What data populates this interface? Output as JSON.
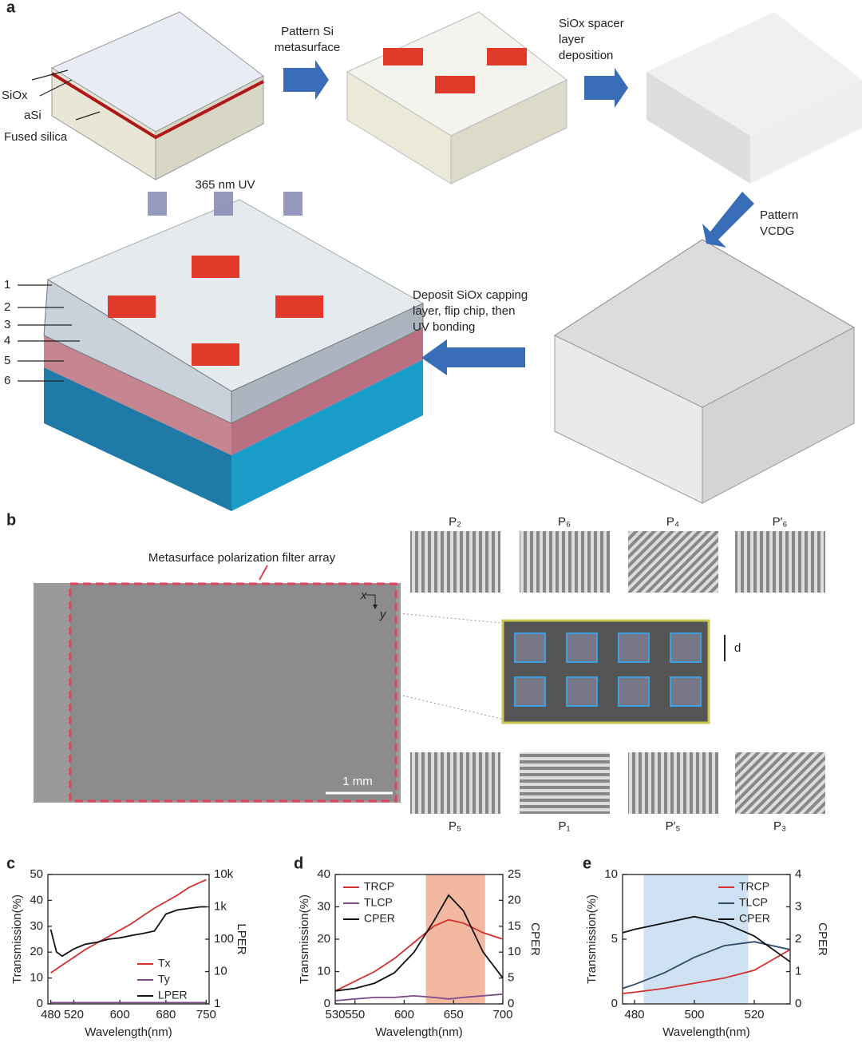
{
  "panel_labels": [
    "a",
    "b",
    "c",
    "d",
    "e"
  ],
  "panel_a": {
    "layers": [
      "SiOx",
      "aSi",
      "Fused silica"
    ],
    "steps": [
      [
        "Pattern Si",
        "metasurface"
      ],
      [
        "SiOx spacer",
        "layer",
        "deposition"
      ],
      [
        "Pattern",
        "VCDG"
      ],
      [
        "Deposit SiOx capping",
        "layer, flip chip, then",
        "UV bonding"
      ]
    ],
    "uv": "365 nm UV",
    "layer_numbers": [
      "1",
      "2",
      "3",
      "4",
      "5",
      "6"
    ]
  },
  "panel_b": {
    "caption": "Metasurface polarization filter array",
    "scale": "1 mm",
    "axes": [
      "x",
      "y"
    ],
    "d": "d",
    "patterns_top": [
      "P₂",
      "P₆",
      "P₄",
      "P′₆"
    ],
    "patterns_bottom": [
      "P₅",
      "P₁",
      "P′₅",
      "P₃"
    ]
  },
  "chart_data": [
    {
      "type": "line",
      "xlabel": "Wavelength(nm)",
      "ylabel": "Transmission(%)",
      "y2label": "LPER",
      "legend": "lower right",
      "x": [
        480,
        490,
        500,
        520,
        540,
        560,
        580,
        600,
        620,
        640,
        660,
        680,
        700,
        720,
        740,
        750
      ],
      "xlim": [
        475,
        755
      ],
      "xticks": [
        480,
        520,
        600,
        680,
        750
      ],
      "ylim": [
        0,
        50
      ],
      "yticks": [
        0,
        10,
        20,
        30,
        40,
        50
      ],
      "y2lim": [
        1,
        10000
      ],
      "y2log": true,
      "y2ticks": [
        1,
        10,
        100,
        {
          "value": 1000,
          "label": "1k"
        },
        {
          "value": 10000,
          "label": "10k"
        }
      ],
      "series": [
        {
          "name": "Tx",
          "color": "#d62f2f",
          "values": [
            12,
            13.5,
            15,
            18,
            21,
            23.5,
            26,
            28.5,
            31,
            34,
            37,
            39.5,
            42,
            45,
            47,
            48
          ]
        },
        {
          "name": "Ty",
          "color": "#7a4a8a",
          "values": [
            0.5,
            0.5,
            0.5,
            0.5,
            0.5,
            0.5,
            0.5,
            0.5,
            0.5,
            0.5,
            0.5,
            0.5,
            0.5,
            0.5,
            0.5,
            0.5
          ]
        },
        {
          "name": "LPER",
          "color": "#111111",
          "axis": "y2",
          "values": [
            200,
            40,
            30,
            50,
            70,
            80,
            100,
            110,
            130,
            150,
            180,
            600,
            800,
            900,
            1000,
            1000
          ]
        }
      ]
    },
    {
      "type": "line",
      "xlabel": "Wavelength(nm)",
      "ylabel": "Transmission(%)",
      "y2label": "CPER",
      "legend": "upper left",
      "x": [
        530,
        550,
        570,
        590,
        610,
        630,
        645,
        660,
        680,
        700
      ],
      "xlim": [
        530,
        700
      ],
      "xticks": [
        530,
        550,
        600,
        650,
        700
      ],
      "ylim": [
        0,
        40
      ],
      "yticks": [
        0,
        10,
        20,
        30,
        40
      ],
      "y2lim": [
        0,
        25
      ],
      "y2ticks": [
        0,
        5,
        10,
        15,
        20,
        25
      ],
      "shade": [
        622,
        682
      ],
      "shade_color": "#f2b8a0",
      "series": [
        {
          "name": "TRCP",
          "color": "#d62f2f",
          "values": [
            4,
            7,
            10,
            14,
            19,
            24,
            26,
            25,
            22,
            20
          ]
        },
        {
          "name": "TLCP",
          "color": "#7a4a8a",
          "values": [
            1,
            1.5,
            2,
            2,
            2.5,
            2,
            1.5,
            2,
            2.5,
            3
          ]
        },
        {
          "name": "CPER",
          "color": "#111111",
          "axis": "y2",
          "values": [
            2.5,
            3,
            4,
            6,
            10,
            16,
            21,
            18,
            10,
            5
          ]
        }
      ]
    },
    {
      "type": "line",
      "xlabel": "Wavelength(nm)",
      "ylabel": "Transmission(%)",
      "y2label": "CPER",
      "legend": "upper right",
      "x": [
        476,
        480,
        490,
        500,
        510,
        520,
        532
      ],
      "xlim": [
        476,
        532
      ],
      "xticks": [
        480,
        500,
        520
      ],
      "ylim": [
        0,
        10
      ],
      "yticks": [
        0,
        5,
        10
      ],
      "y2lim": [
        0,
        4
      ],
      "y2ticks": [
        0,
        1,
        2,
        3,
        4
      ],
      "shade": [
        483,
        518
      ],
      "shade_color": "#cfe2f3",
      "series": [
        {
          "name": "TRCP",
          "color": "#d62f2f",
          "values": [
            0.8,
            0.9,
            1.2,
            1.6,
            2.0,
            2.6,
            4.2
          ]
        },
        {
          "name": "TLCP",
          "color": "#2f4a6a",
          "values": [
            1.2,
            1.5,
            2.4,
            3.6,
            4.5,
            4.8,
            4.2
          ]
        },
        {
          "name": "CPER",
          "color": "#111111",
          "axis": "y2",
          "values": [
            2.2,
            2.3,
            2.5,
            2.7,
            2.5,
            2.1,
            1.3
          ]
        }
      ]
    }
  ]
}
